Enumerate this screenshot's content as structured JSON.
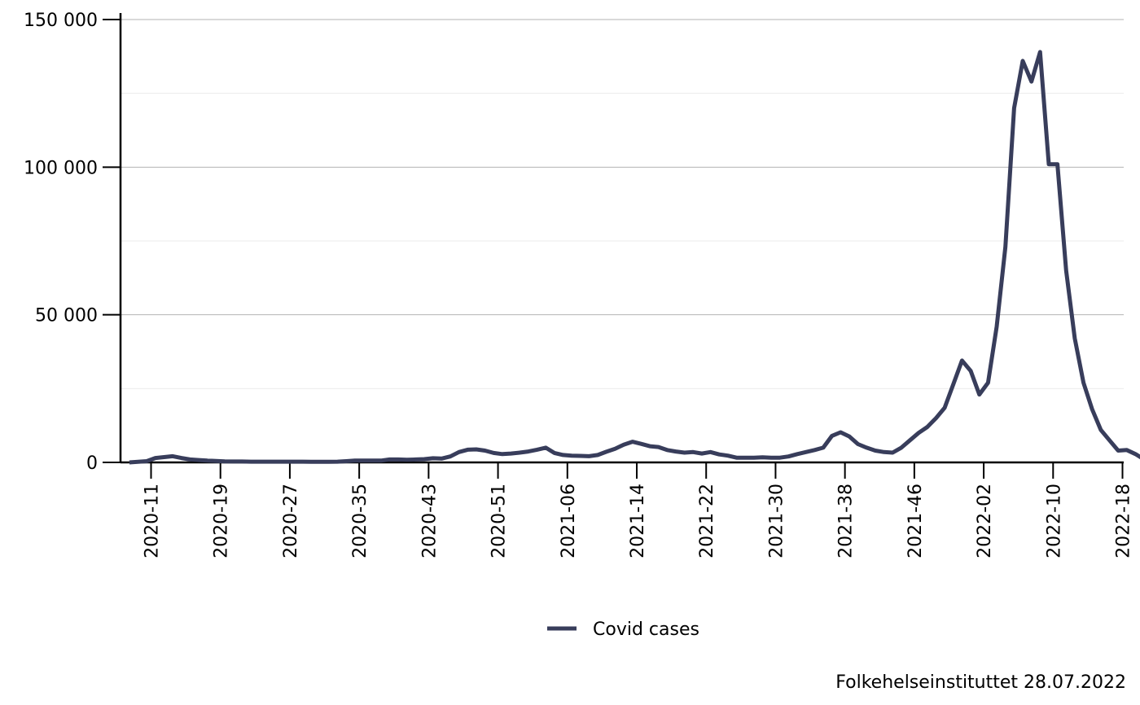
{
  "chart_data": {
    "type": "line",
    "title": "",
    "xlabel": "",
    "ylabel": "",
    "ylim": [
      0,
      150000
    ],
    "y_ticks": [
      {
        "value": 0,
        "label": "0"
      },
      {
        "value": 50000,
        "label": "50 000"
      },
      {
        "value": 100000,
        "label": "100 000"
      },
      {
        "value": 150000,
        "label": "150 000"
      }
    ],
    "y_minor_ticks": [
      25000,
      75000,
      125000
    ],
    "x_week_range": [
      0,
      120
    ],
    "x_ticks": [
      {
        "label": "2020-11",
        "index": 3
      },
      {
        "label": "2020-19",
        "index": 11
      },
      {
        "label": "2020-27",
        "index": 19
      },
      {
        "label": "2020-35",
        "index": 27
      },
      {
        "label": "2020-43",
        "index": 35
      },
      {
        "label": "2020-51",
        "index": 43
      },
      {
        "label": "2021-06",
        "index": 51
      },
      {
        "label": "2021-14",
        "index": 59
      },
      {
        "label": "2021-22",
        "index": 67
      },
      {
        "label": "2021-30",
        "index": 75
      },
      {
        "label": "2021-38",
        "index": 83
      },
      {
        "label": "2021-46",
        "index": 91
      },
      {
        "label": "2022-02",
        "index": 99
      },
      {
        "label": "2022-10",
        "index": 107
      },
      {
        "label": "2022-18",
        "index": 115
      }
    ],
    "series": [
      {
        "name": "Covid cases",
        "color": "#383d5b",
        "start_index": 0.5,
        "values": [
          0,
          200,
          400,
          1500,
          1800,
          2100,
          1500,
          1000,
          800,
          600,
          500,
          350,
          300,
          300,
          250,
          250,
          250,
          250,
          250,
          250,
          250,
          200,
          200,
          200,
          250,
          400,
          600,
          600,
          600,
          600,
          1000,
          1000,
          900,
          1000,
          1100,
          1400,
          1300,
          2000,
          3500,
          4300,
          4400,
          4000,
          3200,
          2800,
          3000,
          3300,
          3700,
          4300,
          5000,
          3200,
          2500,
          2300,
          2200,
          2100,
          2500,
          3600,
          4600,
          6000,
          7000,
          6300,
          5500,
          5200,
          4200,
          3700,
          3300,
          3500,
          3000,
          3500,
          2700,
          2300,
          1600,
          1600,
          1600,
          1700,
          1600,
          1600,
          2000,
          2800,
          3500,
          4200,
          5000,
          9000,
          10200,
          8800,
          6200,
          5000,
          4000,
          3500,
          3300,
          5000,
          7500,
          10000,
          12000,
          15000,
          18500,
          26500,
          34500,
          31000,
          23000,
          27000,
          46000,
          73000,
          120000,
          136000,
          129000,
          139000,
          101000,
          101000,
          65000,
          42000,
          27000,
          18000,
          11000,
          7500,
          4000,
          4200,
          2800,
          1000
        ]
      }
    ],
    "legend": {
      "position": "bottom-center",
      "label": "Covid cases"
    }
  },
  "caption": "Folkehelseinstituttet 28.07.2022"
}
